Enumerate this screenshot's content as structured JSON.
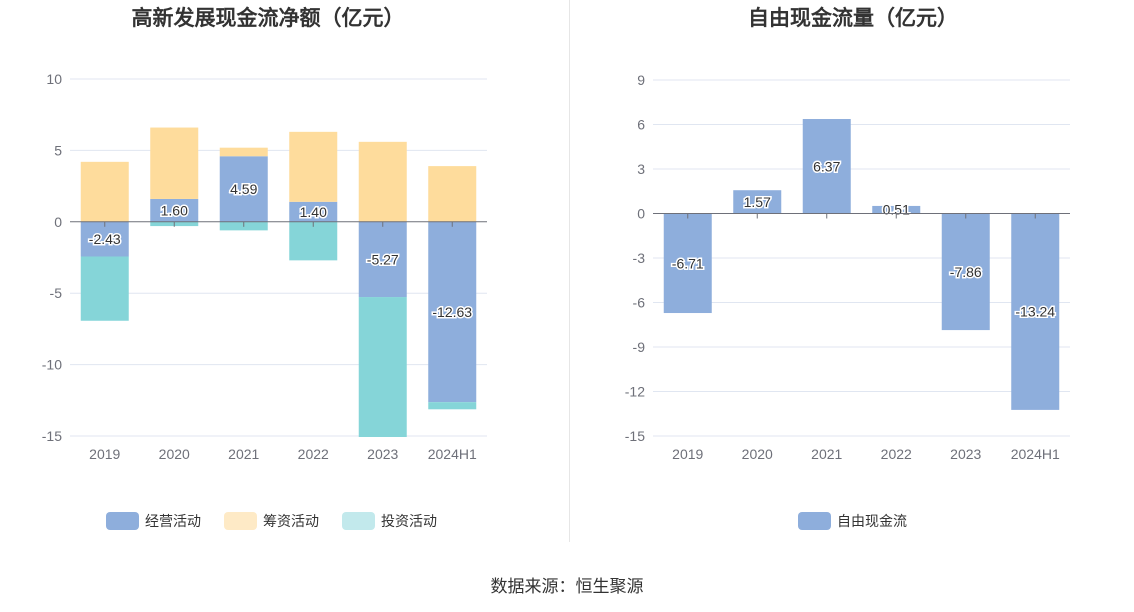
{
  "source": "数据来源：恒生聚源",
  "chart_data": [
    {
      "type": "bar",
      "stacked": true,
      "title": "高新发展现金流净额（亿元）",
      "categories": [
        "2019",
        "2020",
        "2021",
        "2022",
        "2023",
        "2024H1"
      ],
      "ylim": [
        -15,
        10
      ],
      "yticks": [
        10,
        5,
        0,
        -5,
        -10,
        -15
      ],
      "grid": true,
      "legend_position": "bottom",
      "series": [
        {
          "name": "经营活动",
          "color": "#8eaedc",
          "values": [
            -2.43,
            1.6,
            4.59,
            1.4,
            -5.27,
            -12.63
          ],
          "labels": [
            "-2.43",
            "1.60",
            "4.59",
            "1.40",
            "-5.27",
            "-12.63"
          ]
        },
        {
          "name": "筹资活动",
          "color": "#fedc9c",
          "values": [
            4.2,
            5.0,
            0.6,
            4.9,
            5.6,
            3.9
          ]
        },
        {
          "name": "投资活动",
          "color": "#85d5d8",
          "values": [
            -4.5,
            -0.3,
            -0.6,
            -2.7,
            -9.8,
            -0.5
          ]
        }
      ]
    },
    {
      "type": "bar",
      "title": "自由现金流量（亿元）",
      "categories": [
        "2019",
        "2020",
        "2021",
        "2022",
        "2023",
        "2024H1"
      ],
      "ylim": [
        -15,
        9
      ],
      "yticks": [
        9,
        6,
        3,
        0,
        -3,
        -6,
        -9,
        -12,
        -15
      ],
      "grid": true,
      "legend_position": "bottom",
      "series": [
        {
          "name": "自由现金流",
          "color": "#8eaedc",
          "values": [
            -6.71,
            1.57,
            6.37,
            0.51,
            -7.86,
            -13.24
          ],
          "labels": [
            "-6.71",
            "1.57",
            "6.37",
            "0.51",
            "-7.86",
            "-13.24"
          ]
        }
      ]
    }
  ]
}
